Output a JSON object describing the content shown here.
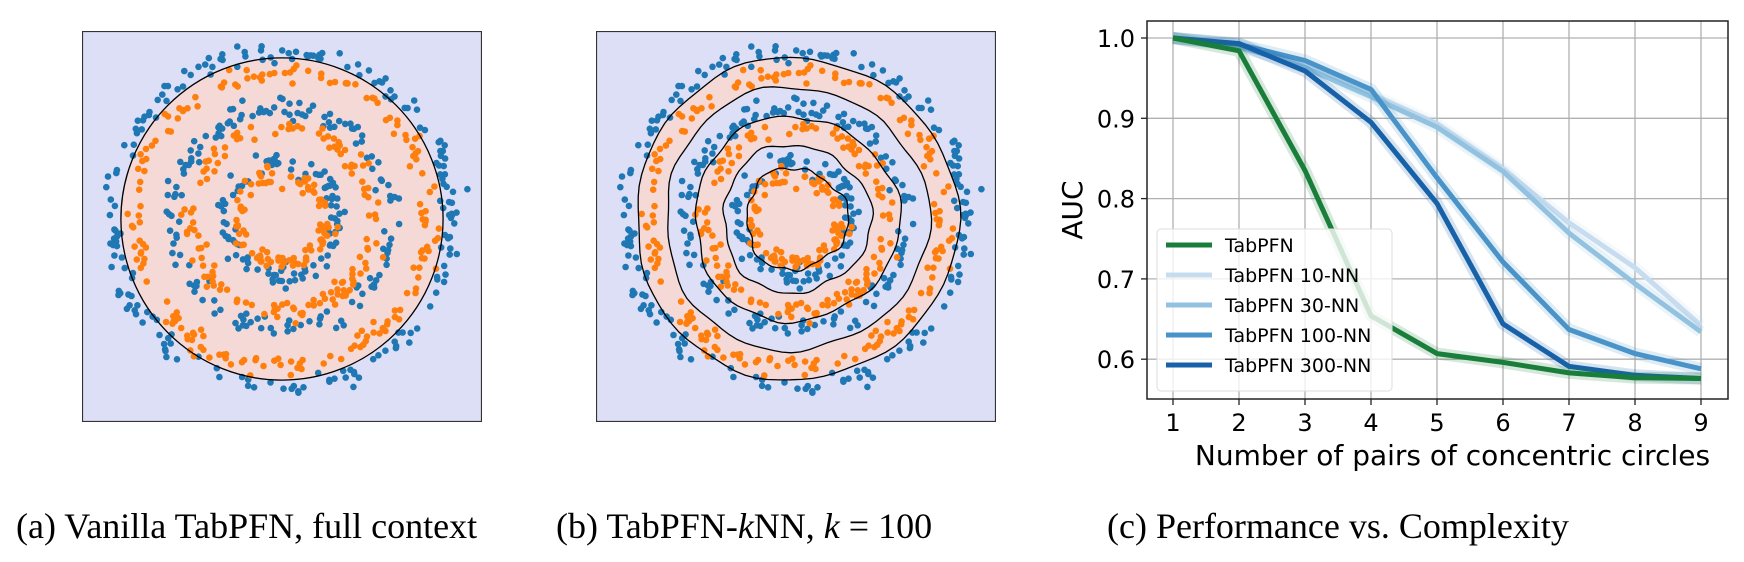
{
  "figure": {
    "captions": {
      "a": "(a) Vanilla TabPFN, full context",
      "b_prefix": "(b) TabPFN-",
      "b_k": "k",
      "b_mid": "NN, ",
      "b_k2": "k",
      "b_suffix": " = 100",
      "c": "(c) Performance vs. Complexity"
    },
    "colors": {
      "class0": "#1f77b4",
      "class1": "#ff7f0e",
      "region_blue": "#dcdff5",
      "region_pink": "#f5d9d6",
      "boundary": "#000000"
    }
  },
  "panel_a": {
    "title": "Vanilla TabPFN, full context",
    "rings": [
      {
        "class": "blue",
        "radius": 0.95
      },
      {
        "class": "orange",
        "radius": 0.83
      },
      {
        "class": "blue",
        "radius": 0.62
      },
      {
        "class": "orange",
        "radius": 0.52
      },
      {
        "class": "blue",
        "radius": 0.32
      },
      {
        "class": "orange",
        "radius": 0.25
      }
    ],
    "decision_boundary": "single circle, radius 0.90"
  },
  "panel_b": {
    "title": "TabPFN-kNN, k = 100",
    "rings": [
      {
        "class": "blue",
        "radius": 0.95
      },
      {
        "class": "orange",
        "radius": 0.83
      },
      {
        "class": "blue",
        "radius": 0.62
      },
      {
        "class": "orange",
        "radius": 0.52
      },
      {
        "class": "blue",
        "radius": 0.32
      },
      {
        "class": "orange",
        "radius": 0.25
      }
    ],
    "decision_boundary": "6 wavy contours separating alternating rings"
  },
  "chart_data": {
    "type": "line",
    "title": "",
    "xlabel": "Number of pairs of concentric circles",
    "ylabel": "AUC",
    "x": [
      1,
      2,
      3,
      4,
      5,
      6,
      7,
      8,
      9
    ],
    "xticks": [
      "1",
      "2",
      "3",
      "4",
      "5",
      "6",
      "7",
      "8",
      "9"
    ],
    "yticks": [
      "0.6",
      "0.7",
      "0.8",
      "0.9",
      "1.0"
    ],
    "ylim": [
      0.553,
      1.022
    ],
    "xlim": [
      0.55,
      9.45
    ],
    "grid": true,
    "legend_position": "lower left",
    "series": [
      {
        "name": "TabPFN",
        "color": "#1a7e3b",
        "values": [
          1.0,
          0.984,
          0.835,
          0.654,
          0.607,
          0.596,
          0.583,
          0.577,
          0.576
        ]
      },
      {
        "name": "TabPFN 10-NN",
        "color": "#c8dcef",
        "values": [
          1.0,
          0.989,
          0.966,
          0.93,
          0.893,
          0.837,
          0.77,
          0.714,
          0.642
        ]
      },
      {
        "name": "TabPFN 30-NN",
        "color": "#92c2e0",
        "values": [
          1.0,
          0.99,
          0.963,
          0.927,
          0.889,
          0.834,
          0.757,
          0.694,
          0.634
        ]
      },
      {
        "name": "TabPFN 100-NN",
        "color": "#4a93c9",
        "values": [
          1.0,
          0.992,
          0.972,
          0.936,
          0.826,
          0.721,
          0.637,
          0.607,
          0.588
        ]
      },
      {
        "name": "TabPFN 300-NN",
        "color": "#1761a8",
        "values": [
          1.0,
          0.993,
          0.959,
          0.895,
          0.794,
          0.644,
          0.591,
          0.58,
          0.576
        ]
      }
    ]
  }
}
